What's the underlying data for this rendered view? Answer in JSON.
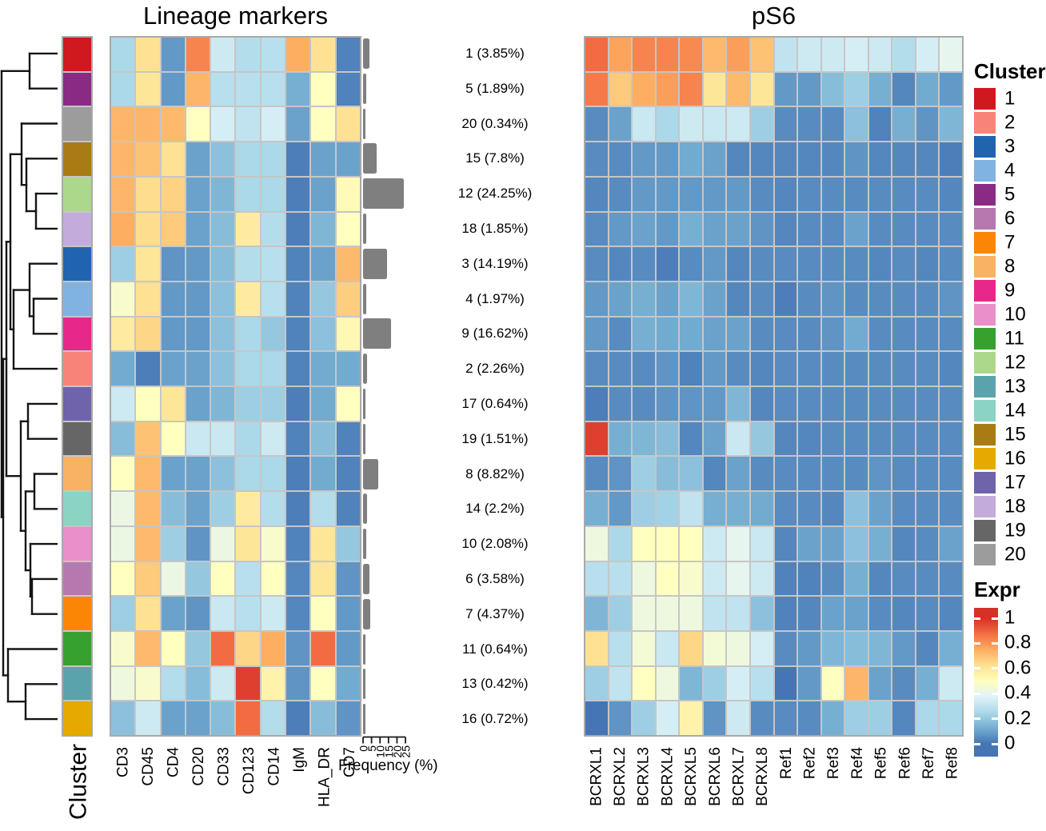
{
  "chart_data": {
    "type": "heatmap",
    "titles": {
      "lineage": "Lineage markers",
      "ps6": "pS6"
    },
    "cluster_axis_label": "Cluster",
    "freq_axis": {
      "label": "Frequency (%)",
      "ticks": [
        0,
        5,
        10,
        15,
        20,
        25
      ],
      "max": 25
    },
    "cluster_legend": {
      "title": "Cluster",
      "ids": [
        "1",
        "2",
        "3",
        "4",
        "5",
        "6",
        "7",
        "8",
        "9",
        "10",
        "11",
        "12",
        "13",
        "14",
        "15",
        "16",
        "17",
        "18",
        "19",
        "20"
      ],
      "colors": {
        "1": "#d0181f",
        "2": "#f88379",
        "3": "#2064b0",
        "4": "#80b2e2",
        "5": "#8a2a84",
        "6": "#b678af",
        "7": "#fb8605",
        "8": "#f9b264",
        "9": "#e8278b",
        "10": "#e98fc9",
        "11": "#36a12e",
        "12": "#abd88a",
        "13": "#5aa3ad",
        "14": "#8bd4c4",
        "15": "#a87b15",
        "16": "#e5a900",
        "17": "#6f63ac",
        "18": "#c3acdc",
        "19": "#666666",
        "20": "#9c9c9c"
      }
    },
    "expr_legend": {
      "title": "Expr",
      "ticks": [
        "1",
        "0.8",
        "0.6",
        "0.4",
        "0.2",
        "0"
      ],
      "tick_values": [
        1,
        0.8,
        0.6,
        0.4,
        0.2,
        0
      ]
    },
    "colormap": {
      "stops": [
        [
          0,
          "#4575b4"
        ],
        [
          0.125,
          "#74add1"
        ],
        [
          0.25,
          "#abd9e9"
        ],
        [
          0.375,
          "#e0f3f8"
        ],
        [
          0.5,
          "#ffffbf"
        ],
        [
          0.625,
          "#fee090"
        ],
        [
          0.75,
          "#fdae61"
        ],
        [
          0.875,
          "#f46d43"
        ],
        [
          1,
          "#d73027"
        ]
      ]
    },
    "rows": [
      {
        "cluster": "1",
        "label": "1 (3.85%)",
        "freq": 3.85
      },
      {
        "cluster": "5",
        "label": "5 (1.89%)",
        "freq": 1.89
      },
      {
        "cluster": "20",
        "label": "20 (0.34%)",
        "freq": 0.34
      },
      {
        "cluster": "15",
        "label": "15 (7.8%)",
        "freq": 7.8
      },
      {
        "cluster": "12",
        "label": "12 (24.25%)",
        "freq": 24.25
      },
      {
        "cluster": "18",
        "label": "18 (1.85%)",
        "freq": 1.85
      },
      {
        "cluster": "3",
        "label": "3 (14.19%)",
        "freq": 14.19
      },
      {
        "cluster": "4",
        "label": "4 (1.97%)",
        "freq": 1.97
      },
      {
        "cluster": "9",
        "label": "9 (16.62%)",
        "freq": 16.62
      },
      {
        "cluster": "2",
        "label": "2 (2.26%)",
        "freq": 2.26
      },
      {
        "cluster": "17",
        "label": "17 (0.64%)",
        "freq": 0.64
      },
      {
        "cluster": "19",
        "label": "19 (1.51%)",
        "freq": 1.51
      },
      {
        "cluster": "8",
        "label": "8 (8.82%)",
        "freq": 8.82
      },
      {
        "cluster": "14",
        "label": "14 (2.2%)",
        "freq": 2.2
      },
      {
        "cluster": "10",
        "label": "10 (2.08%)",
        "freq": 2.08
      },
      {
        "cluster": "6",
        "label": "6 (3.58%)",
        "freq": 3.58
      },
      {
        "cluster": "7",
        "label": "7 (4.37%)",
        "freq": 4.37
      },
      {
        "cluster": "11",
        "label": "11 (0.64%)",
        "freq": 0.64
      },
      {
        "cluster": "13",
        "label": "13 (0.42%)",
        "freq": 0.42
      },
      {
        "cluster": "16",
        "label": "16 (0.72%)",
        "freq": 0.72
      }
    ],
    "lineage_markers": {
      "columns": [
        "CD3",
        "CD45",
        "CD4",
        "CD20",
        "CD33",
        "CD123",
        "CD14",
        "IgM",
        "HLA_DR",
        "CD7"
      ],
      "values": [
        [
          0.25,
          0.62,
          0.08,
          0.83,
          0.33,
          0.27,
          0.28,
          0.75,
          0.62,
          0.03
        ],
        [
          0.25,
          0.6,
          0.08,
          0.73,
          0.28,
          0.28,
          0.28,
          0.13,
          0.5,
          0.03
        ],
        [
          0.73,
          0.73,
          0.72,
          0.5,
          0.35,
          0.3,
          0.35,
          0.1,
          0.5,
          0.62
        ],
        [
          0.73,
          0.7,
          0.62,
          0.1,
          0.18,
          0.25,
          0.25,
          0.02,
          0.1,
          0.1
        ],
        [
          0.73,
          0.63,
          0.66,
          0.1,
          0.15,
          0.25,
          0.25,
          0.02,
          0.1,
          0.52
        ],
        [
          0.75,
          0.63,
          0.68,
          0.1,
          0.17,
          0.58,
          0.27,
          0.02,
          0.15,
          0.5
        ],
        [
          0.22,
          0.6,
          0.07,
          0.08,
          0.17,
          0.27,
          0.28,
          0.03,
          0.1,
          0.72
        ],
        [
          0.47,
          0.62,
          0.08,
          0.08,
          0.18,
          0.58,
          0.28,
          0.03,
          0.2,
          0.67
        ],
        [
          0.58,
          0.65,
          0.08,
          0.08,
          0.18,
          0.25,
          0.2,
          0.03,
          0.18,
          0.53
        ],
        [
          0.12,
          0.02,
          0.1,
          0.1,
          0.18,
          0.25,
          0.25,
          0.03,
          0.12,
          0.12
        ],
        [
          0.33,
          0.5,
          0.6,
          0.1,
          0.15,
          0.22,
          0.22,
          0.02,
          0.12,
          0.5
        ],
        [
          0.17,
          0.7,
          0.5,
          0.32,
          0.32,
          0.25,
          0.33,
          0.03,
          0.17,
          0.03
        ],
        [
          0.5,
          0.72,
          0.1,
          0.1,
          0.18,
          0.25,
          0.25,
          0.02,
          0.12,
          0.03
        ],
        [
          0.42,
          0.72,
          0.17,
          0.1,
          0.22,
          0.58,
          0.27,
          0.02,
          0.27,
          0.03
        ],
        [
          0.42,
          0.72,
          0.22,
          0.07,
          0.42,
          0.6,
          0.47,
          0.03,
          0.6,
          0.2
        ],
        [
          0.5,
          0.68,
          0.42,
          0.2,
          0.5,
          0.28,
          0.5,
          0.04,
          0.6,
          0.07
        ],
        [
          0.22,
          0.62,
          0.1,
          0.07,
          0.32,
          0.28,
          0.33,
          0.04,
          0.5,
          0.08
        ],
        [
          0.47,
          0.72,
          0.5,
          0.2,
          0.88,
          0.65,
          0.75,
          0.07,
          0.88,
          0.08
        ],
        [
          0.43,
          0.47,
          0.27,
          0.17,
          0.33,
          0.97,
          0.55,
          0.07,
          0.5,
          0.12
        ],
        [
          0.18,
          0.33,
          0.1,
          0.1,
          0.17,
          0.88,
          0.27,
          0.02,
          0.17,
          0.07
        ]
      ]
    },
    "ps6": {
      "columns": [
        "BCRXL1",
        "BCRXL2",
        "BCRXL3",
        "BCRXL4",
        "BCRXL5",
        "BCRXL6",
        "BCRXL7",
        "BCRXL8",
        "Ref1",
        "Ref2",
        "Ref3",
        "Ref4",
        "Ref5",
        "Ref6",
        "Ref7",
        "Ref8"
      ],
      "values": [
        [
          0.88,
          0.77,
          0.83,
          0.83,
          0.82,
          0.72,
          0.78,
          0.7,
          0.3,
          0.33,
          0.33,
          0.35,
          0.33,
          0.27,
          0.35,
          0.4
        ],
        [
          0.85,
          0.68,
          0.75,
          0.78,
          0.83,
          0.6,
          0.72,
          0.6,
          0.08,
          0.08,
          0.17,
          0.22,
          0.13,
          0.04,
          0.12,
          0.08
        ],
        [
          0.05,
          0.1,
          0.32,
          0.25,
          0.33,
          0.32,
          0.33,
          0.22,
          0.05,
          0.05,
          0.05,
          0.18,
          0.03,
          0.13,
          0.07,
          0.15
        ],
        [
          0.05,
          0.05,
          0.08,
          0.08,
          0.12,
          0.1,
          0.04,
          0.04,
          0.04,
          0.04,
          0.04,
          0.07,
          0.04,
          0.04,
          0.04,
          0.02
        ],
        [
          0.04,
          0.05,
          0.08,
          0.08,
          0.08,
          0.08,
          0.08,
          0.05,
          0.04,
          0.05,
          0.05,
          0.05,
          0.05,
          0.05,
          0.05,
          0.04
        ],
        [
          0.05,
          0.08,
          0.1,
          0.08,
          0.13,
          0.1,
          0.1,
          0.07,
          0.04,
          0.05,
          0.05,
          0.1,
          0.05,
          0.05,
          0.05,
          0.05
        ],
        [
          0.05,
          0.04,
          0.05,
          0.02,
          0.05,
          0.08,
          0.04,
          0.05,
          0.05,
          0.05,
          0.05,
          0.05,
          0.04,
          0.05,
          0.04,
          0.05
        ],
        [
          0.08,
          0.1,
          0.13,
          0.1,
          0.15,
          0.1,
          0.04,
          0.05,
          0.02,
          0.05,
          0.07,
          0.05,
          0.05,
          0.05,
          0.05,
          0.07
        ],
        [
          0.08,
          0.05,
          0.13,
          0.12,
          0.12,
          0.1,
          0.1,
          0.05,
          0.05,
          0.05,
          0.07,
          0.12,
          0.05,
          0.05,
          0.05,
          0.05
        ],
        [
          0.05,
          0.05,
          0.05,
          0.07,
          0.03,
          0.08,
          0.05,
          0.04,
          0.05,
          0.05,
          0.05,
          0.05,
          0.05,
          0.05,
          0.05,
          0.04
        ],
        [
          0.02,
          0.05,
          0.05,
          0.07,
          0.07,
          0.08,
          0.15,
          0.04,
          0.05,
          0.05,
          0.05,
          0.05,
          0.05,
          0.05,
          0.05,
          0.05
        ],
        [
          0.97,
          0.13,
          0.15,
          0.17,
          0.04,
          0.1,
          0.32,
          0.2,
          0.04,
          0.04,
          0.05,
          0.05,
          0.05,
          0.05,
          0.05,
          0.05
        ],
        [
          0.05,
          0.07,
          0.22,
          0.17,
          0.18,
          0.04,
          0.1,
          0.05,
          0.05,
          0.05,
          0.05,
          0.05,
          0.07,
          0.05,
          0.05,
          0.05
        ],
        [
          0.13,
          0.08,
          0.22,
          0.23,
          0.3,
          0.13,
          0.13,
          0.12,
          0.05,
          0.05,
          0.04,
          0.18,
          0.1,
          0.05,
          0.05,
          0.05
        ],
        [
          0.43,
          0.25,
          0.5,
          0.5,
          0.5,
          0.33,
          0.4,
          0.32,
          0.04,
          0.1,
          0.1,
          0.18,
          0.13,
          0.04,
          0.05,
          0.1
        ],
        [
          0.28,
          0.28,
          0.43,
          0.5,
          0.47,
          0.33,
          0.4,
          0.33,
          0.03,
          0.03,
          0.05,
          0.13,
          0.04,
          0.05,
          0.05,
          0.05
        ],
        [
          0.15,
          0.22,
          0.43,
          0.43,
          0.43,
          0.3,
          0.3,
          0.18,
          0.03,
          0.04,
          0.1,
          0.1,
          0.05,
          0.04,
          0.05,
          0.04
        ],
        [
          0.62,
          0.28,
          0.45,
          0.32,
          0.65,
          0.45,
          0.43,
          0.35,
          0.05,
          0.08,
          0.15,
          0.17,
          0.15,
          0.08,
          0.04,
          0.13
        ],
        [
          0.22,
          0.3,
          0.5,
          0.43,
          0.15,
          0.22,
          0.35,
          0.28,
          0.0,
          0.08,
          0.5,
          0.73,
          0.1,
          0.05,
          0.13,
          0.33
        ],
        [
          0.0,
          0.07,
          0.22,
          0.35,
          0.55,
          0.07,
          0.33,
          0.05,
          0.05,
          0.05,
          0.13,
          0.22,
          0.22,
          0.04,
          0.25,
          0.25
        ]
      ]
    },
    "dendrogram_segments": [
      [
        71,
        21.9,
        37,
        21.9
      ],
      [
        71,
        65.7,
        37,
        65.7
      ],
      [
        37,
        21.9,
        37,
        65.7
      ],
      [
        37,
        43.8,
        2,
        43.8
      ],
      [
        71,
        109.5,
        27,
        109.5
      ],
      [
        71,
        153.3,
        33,
        153.3
      ],
      [
        71,
        197.1,
        45,
        197.1
      ],
      [
        71,
        240.9,
        45,
        240.9
      ],
      [
        45,
        197.1,
        45,
        240.9
      ],
      [
        45,
        219,
        33,
        219
      ],
      [
        33,
        153.3,
        33,
        219
      ],
      [
        33,
        186.2,
        27,
        186.2
      ],
      [
        27,
        109.5,
        27,
        186.2
      ],
      [
        27,
        147.8,
        13,
        147.8
      ],
      [
        71,
        284.7,
        37,
        284.7
      ],
      [
        71,
        328.5,
        42,
        328.5
      ],
      [
        71,
        372.3,
        42,
        372.3
      ],
      [
        42,
        328.5,
        42,
        372.3
      ],
      [
        42,
        350.4,
        37,
        350.4
      ],
      [
        37,
        284.7,
        37,
        350.4
      ],
      [
        37,
        317.6,
        17,
        317.6
      ],
      [
        71,
        416.1,
        17,
        416.1
      ],
      [
        17,
        317.6,
        17,
        416.1
      ],
      [
        17,
        366.8,
        13,
        366.8
      ],
      [
        13,
        147.8,
        13,
        366.8
      ],
      [
        13,
        257.3,
        8,
        257.3
      ],
      [
        71,
        459.9,
        35,
        459.9
      ],
      [
        71,
        503.7,
        35,
        503.7
      ],
      [
        35,
        459.9,
        35,
        503.7
      ],
      [
        35,
        481.8,
        26,
        481.8
      ],
      [
        71,
        547.5,
        43,
        547.5
      ],
      [
        71,
        591.3,
        43,
        591.3
      ],
      [
        43,
        547.5,
        43,
        591.3
      ],
      [
        43,
        569.4,
        32,
        569.4
      ],
      [
        71,
        635.1,
        38,
        635.1
      ],
      [
        71,
        678.9,
        40,
        678.9
      ],
      [
        71,
        722.7,
        40,
        722.7
      ],
      [
        40,
        678.9,
        40,
        722.7
      ],
      [
        40,
        700.8,
        38,
        700.8
      ],
      [
        38,
        635.1,
        38,
        700.8
      ],
      [
        38,
        668,
        32,
        668
      ],
      [
        32,
        569.4,
        32,
        668
      ],
      [
        32,
        618.7,
        26,
        618.7
      ],
      [
        26,
        481.8,
        26,
        618.7
      ],
      [
        26,
        550.2,
        8,
        550.2
      ],
      [
        8,
        257.3,
        8,
        550.2
      ],
      [
        8,
        403.8,
        4,
        403.8
      ],
      [
        71,
        766.5,
        10,
        766.5
      ],
      [
        71,
        810.3,
        32,
        810.3
      ],
      [
        71,
        854.1,
        32,
        854.1
      ],
      [
        32,
        810.3,
        32,
        854.1
      ],
      [
        32,
        832.2,
        10,
        832.2
      ],
      [
        10,
        766.5,
        10,
        832.2
      ],
      [
        10,
        799.4,
        4,
        799.4
      ],
      [
        4,
        403.8,
        4,
        799.4
      ],
      [
        4,
        601.6,
        2,
        601.6
      ],
      [
        2,
        43.8,
        2,
        601.6
      ]
    ]
  }
}
